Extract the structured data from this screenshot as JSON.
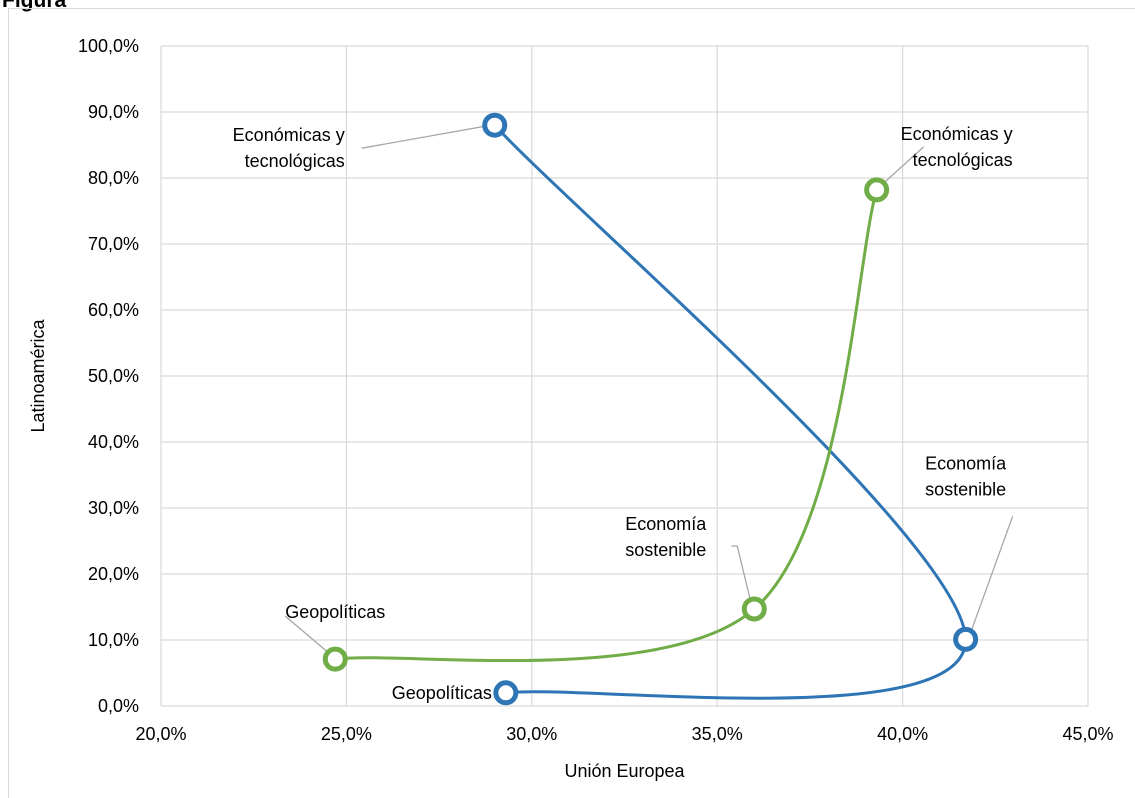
{
  "chart_data": {
    "type": "scatter",
    "title": "Figura",
    "xlabel": "Unión Europea",
    "ylabel": "Latinoamérica",
    "xlim": [
      0.2,
      0.45
    ],
    "ylim": [
      0.0,
      1.0
    ],
    "x_ticks": [
      "20,0%",
      "25,0%",
      "30,0%",
      "35,0%",
      "40,0%",
      "45,0%"
    ],
    "y_ticks": [
      "0,0%",
      "10,0%",
      "20,0%",
      "30,0%",
      "40,0%",
      "50,0%",
      "60,0%",
      "70,0%",
      "80,0%",
      "90,0%",
      "100,0%"
    ],
    "grid": true,
    "smooth_lines": true,
    "series": [
      {
        "color": "#2e75b6",
        "points": [
          {
            "x": 0.29,
            "y": 0.88,
            "label": [
              "Económicas y",
              "tecnológicas"
            ]
          },
          {
            "x": 0.417,
            "y": 0.101,
            "label": [
              "Economía",
              "sostenible"
            ]
          },
          {
            "x": 0.293,
            "y": 0.02,
            "label": [
              "Geopolíticas"
            ]
          }
        ]
      },
      {
        "color": "#70ad47",
        "points": [
          {
            "x": 0.247,
            "y": 0.071,
            "label": [
              "Geopolíticas"
            ]
          },
          {
            "x": 0.36,
            "y": 0.147,
            "label": [
              "Economía",
              "sostenible"
            ]
          },
          {
            "x": 0.393,
            "y": 0.782,
            "label": [
              "Económicas y",
              "tecnológicas"
            ]
          }
        ]
      }
    ]
  }
}
